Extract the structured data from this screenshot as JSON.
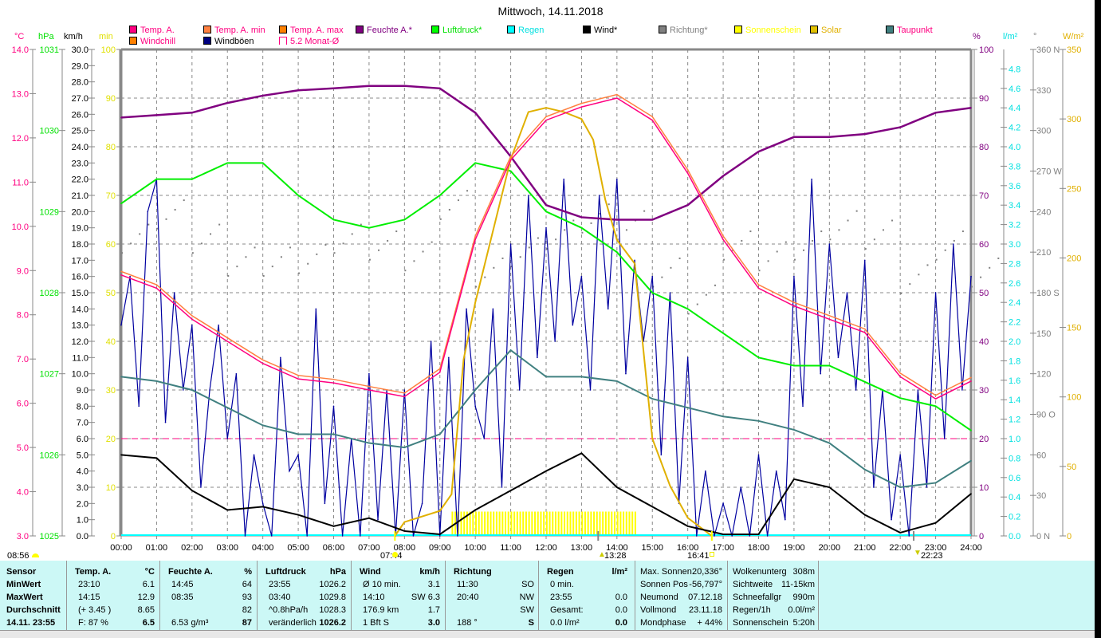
{
  "title": "Mittwoch, 14.11.2018",
  "legend": [
    {
      "label": "Temp. A.",
      "color": "#ff0080",
      "text": "#ff0080"
    },
    {
      "label": "Temp. A. min",
      "color": "#ff8040",
      "text": "#ff0080"
    },
    {
      "label": "Temp. A. max",
      "color": "#ff8000",
      "text": "#ff0080"
    },
    {
      "label": "Feuchte A.*",
      "color": "#800080",
      "text": "#800080"
    },
    {
      "label": "Luftdruck*",
      "color": "#00ff00",
      "text": "#00e000"
    },
    {
      "label": "Regen",
      "color": "#00ffff",
      "text": "#00e0e0"
    },
    {
      "label": "Wind*",
      "color": "#000000",
      "text": "#000000"
    },
    {
      "label": "Richtung*",
      "color": "#808080",
      "text": "#808080"
    },
    {
      "label": "Sonnenschein",
      "color": "#ffff00",
      "text": "#ffff00"
    },
    {
      "label": "Solar",
      "color": "#e0c000",
      "text": "#e0b000"
    },
    {
      "label": "Taupunkt",
      "color": "#408080",
      "text": "#ff0080"
    },
    {
      "label": "Windchill",
      "color": "#ff8000",
      "text": "#ff0080"
    },
    {
      "label": "Windböen",
      "color": "#000080",
      "text": "#000000"
    },
    {
      "label": "5.2 Monat-Ø",
      "color": "#ffffff",
      "text": "#ff0080"
    }
  ],
  "units": {
    "temp": "°C",
    "press": "hPa",
    "wind": "km/h",
    "min": "min",
    "hum": "%",
    "rain": "l/m²",
    "dir": "°",
    "solar": "W/m²"
  },
  "chart_data": {
    "type": "line",
    "title": "Mittwoch, 14.11.2018",
    "x_ticks": [
      "00:00",
      "01:00",
      "02:00",
      "03:00",
      "04:00",
      "05:00",
      "06:00",
      "07:00",
      "08:00",
      "09:00",
      "10:00",
      "11:00",
      "12:00",
      "13:00",
      "14:00",
      "15:00",
      "16:00",
      "17:00",
      "18:00",
      "19:00",
      "20:00",
      "21:00",
      "22:00",
      "23:00",
      "24:00"
    ],
    "axes": {
      "temp": {
        "min": 3,
        "max": 14,
        "ticks": [
          "14.0",
          "13.0",
          "12.0",
          "11.0",
          "10.0",
          "9.0",
          "8.0",
          "7.0",
          "6.0",
          "5.0",
          "4.0",
          "3.0"
        ],
        "color": "#ff0080"
      },
      "press": {
        "min": 1025,
        "max": 1031,
        "ticks": [
          "1031",
          "1030",
          "1029",
          "1028",
          "1027",
          "1026",
          "1025"
        ],
        "color": "#00e000"
      },
      "wind": {
        "min": 0,
        "max": 30,
        "ticks": [
          "30.0",
          "29.0",
          "28.0",
          "27.0",
          "26.0",
          "25.0",
          "24.0",
          "23.0",
          "22.0",
          "21.0",
          "20.0",
          "19.0",
          "18.0",
          "17.0",
          "16.0",
          "15.0",
          "14.0",
          "13.0",
          "12.0",
          "11.0",
          "10.0",
          "9.0",
          "8.0",
          "7.0",
          "6.0",
          "5.0",
          "4.0",
          "3.0",
          "2.0",
          "1.0",
          "0.0"
        ],
        "color": "#000000"
      },
      "min": {
        "min": 0,
        "max": 100,
        "ticks": [
          "100",
          "90",
          "80",
          "70",
          "60",
          "50",
          "40",
          "30",
          "20",
          "10",
          "0"
        ],
        "color": "#e0e000"
      },
      "hum": {
        "min": 0,
        "max": 100,
        "ticks": [
          "100",
          "90",
          "80",
          "70",
          "60",
          "50",
          "40",
          "30",
          "20",
          "10",
          "0"
        ],
        "color": "#800080"
      },
      "rain": {
        "min": 0,
        "max": 5,
        "ticks": [
          "4.8",
          "4.6",
          "4.4",
          "4.2",
          "4.0",
          "3.8",
          "3.6",
          "3.4",
          "3.2",
          "3.0",
          "2.8",
          "2.6",
          "2.4",
          "2.2",
          "2.0",
          "1.8",
          "1.6",
          "1.4",
          "1.2",
          "1.0",
          "0.8",
          "0.6",
          "0.4",
          "0.2",
          "0.0"
        ],
        "color": "#00e0e0"
      },
      "dir": {
        "min": 0,
        "max": 360,
        "ticks": [
          "360 N",
          "330",
          "300",
          "270 W",
          "240",
          "210",
          "180 S",
          "150",
          "120",
          "90  O",
          "60",
          "30",
          "0   N"
        ],
        "color": "#808080"
      },
      "solar": {
        "min": 0,
        "max": 350,
        "ticks": [
          "350",
          "300",
          "250",
          "200",
          "150",
          "100",
          "50",
          "0"
        ],
        "color": "#e0b000"
      }
    },
    "hours": [
      0,
      1,
      2,
      3,
      4,
      5,
      6,
      7,
      8,
      9,
      10,
      11,
      12,
      13,
      14,
      15,
      16,
      17,
      18,
      19,
      20,
      21,
      22,
      23,
      24
    ],
    "temperature": [
      8.9,
      8.6,
      7.9,
      7.4,
      6.9,
      6.55,
      6.46,
      6.3,
      6.15,
      6.7,
      9.7,
      11.5,
      12.4,
      12.7,
      12.9,
      12.4,
      11.2,
      9.7,
      8.6,
      8.2,
      7.9,
      7.6,
      6.6,
      6.1,
      6.5
    ],
    "humidity": [
      86,
      86.5,
      87,
      89,
      90.5,
      91.6,
      92,
      92.5,
      92.5,
      92,
      87,
      78,
      68,
      65.5,
      65,
      65,
      68,
      74,
      79,
      82,
      82,
      82.6,
      84,
      87,
      88
    ],
    "pressure": [
      1029.1,
      1029.4,
      1029.4,
      1029.6,
      1029.6,
      1029.2,
      1028.9,
      1028.8,
      1028.9,
      1029.2,
      1029.6,
      1029.5,
      1029.0,
      1028.8,
      1028.5,
      1028.0,
      1027.8,
      1027.5,
      1027.2,
      1027.1,
      1027.1,
      1026.9,
      1026.7,
      1026.6,
      1026.3
    ],
    "dewpoint": [
      6.6,
      6.5,
      6.3,
      5.9,
      5.5,
      5.3,
      5.3,
      5.1,
      5.0,
      5.3,
      6.3,
      7.2,
      6.6,
      6.6,
      6.5,
      6.1,
      5.9,
      5.7,
      5.6,
      5.4,
      5.1,
      4.5,
      4.1,
      4.2,
      4.7
    ],
    "wind": [
      5.0,
      4.8,
      2.8,
      1.6,
      1.8,
      1.3,
      0.6,
      1.1,
      0.3,
      0.1,
      1.6,
      2.8,
      4.0,
      5.1,
      3.0,
      1.8,
      0.6,
      0.1,
      0.1,
      3.5,
      3.0,
      1.3,
      0.2,
      0.8,
      2.6
    ],
    "gusts_15min": [
      13,
      16,
      8,
      20,
      22,
      7,
      15,
      9,
      13,
      3,
      9,
      13,
      6,
      10,
      0,
      5,
      2,
      0,
      11,
      4,
      5,
      0,
      14,
      2,
      8,
      0,
      6,
      0,
      10,
      1,
      9,
      0,
      9,
      0,
      2,
      12,
      0,
      11,
      0,
      14,
      8,
      6,
      14,
      3,
      18,
      9,
      21,
      11,
      19,
      12,
      22,
      13,
      16,
      9,
      21,
      14,
      22,
      10,
      17,
      12,
      16,
      5,
      15,
      2,
      11,
      0,
      4,
      0,
      2,
      0,
      3,
      0,
      5,
      0,
      4,
      1,
      16,
      8,
      22,
      10,
      18,
      11,
      15,
      9,
      17,
      3,
      9,
      1,
      5,
      0,
      9,
      3,
      15,
      6,
      18,
      9,
      16
    ],
    "direction": [
      225,
      243,
      225,
      208,
      208,
      210,
      225,
      220,
      212,
      250,
      200,
      215,
      228,
      240,
      235,
      200,
      180,
      220,
      212,
      220,
      235,
      228,
      195,
      220,
      200
    ],
    "solar_times": [
      7.73,
      8.0,
      9.0,
      9.33,
      9.67,
      10.0,
      11.0,
      11.5,
      12.0,
      12.5,
      13.0,
      13.33,
      13.67,
      14.0,
      14.5,
      15.0,
      15.5,
      16.0,
      16.68
    ],
    "solar": [
      0,
      10,
      18,
      30,
      127,
      168,
      271,
      305,
      308,
      305,
      300,
      285,
      242,
      213,
      196,
      70,
      36,
      13,
      0
    ],
    "sunshine": {
      "from": 9.33,
      "to": 14.58,
      "minutes": 5
    },
    "monthly_avg": 5.2
  },
  "sun": {
    "left_time": "08:56",
    "sunrise": "07:44",
    "moon_set": "13:28",
    "sunset": "16:41",
    "moon_rise": "22:23"
  },
  "table": {
    "rows": [
      "Sensor",
      "MinWert",
      "MaxWert",
      "Durchschnitt",
      "14.11. 23:55"
    ],
    "temp": {
      "h": "Temp. A.",
      "u": "°C",
      "c1": [
        "23:10",
        "14:15",
        "(+ 3.45 )",
        "F: 87 %"
      ],
      "c2": [
        "6.1",
        "12.9",
        "8.65",
        "6.5"
      ]
    },
    "hum": {
      "h": "Feuchte A.",
      "u": "%",
      "c1": [
        "14:45",
        "08:35",
        "",
        "6.53 g/m³"
      ],
      "c2": [
        "64",
        "93",
        "82",
        "87"
      ]
    },
    "press": {
      "h": "Luftdruck",
      "u": "hPa",
      "c1": [
        "23:55",
        "03:40",
        "^0.8hPa/h",
        "veränderlich"
      ],
      "c2": [
        "1026.2",
        "1029.8",
        "1028.3",
        "1026.2"
      ]
    },
    "wind": {
      "h": "Wind",
      "u": "km/h",
      "c1": [
        "Ø 10 min.",
        "14:10",
        "176.9 km",
        "1 Bft S"
      ],
      "c2": [
        "3.1",
        "SW 6.3",
        "1.7",
        "3.0"
      ]
    },
    "dir": {
      "h": "Richtung",
      "u": "",
      "c1": [
        "11:30",
        "20:40",
        "",
        "188 °"
      ],
      "c2": [
        "SO",
        "NW",
        "SW",
        "S"
      ]
    },
    "rain": {
      "h": "Regen",
      "u": "l/m²",
      "c1": [
        "0 min.",
        "23:55",
        "Gesamt:",
        "0.0 l/m²"
      ],
      "c2": [
        "",
        "0.0",
        "0.0",
        "0.0"
      ]
    },
    "sunc": {
      "c1": [
        "Max. Sonnen",
        "Sonnen Pos",
        "Neumond",
        "Vollmond",
        "Mondphase"
      ],
      "c2": [
        "20,336°",
        "-56,797°",
        "07.12.18",
        "23.11.18",
        "+ 44%"
      ]
    },
    "misc": {
      "c1": [
        "Wolkenunterg",
        "Sichtweite",
        "Schneefallgr",
        "Regen/1h",
        "Sonnenschein"
      ],
      "c2": [
        "308m",
        "11-15km",
        "990m",
        "0.0l/m²",
        "5:20h"
      ]
    }
  }
}
